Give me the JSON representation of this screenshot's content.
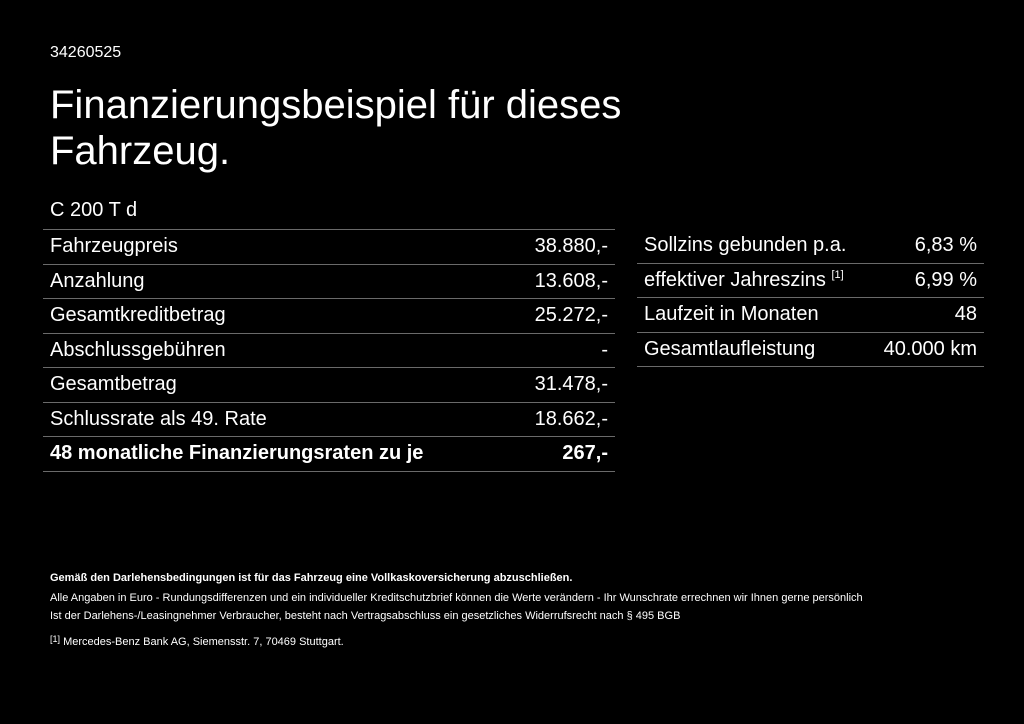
{
  "ref": "34260525",
  "title": "Finanzierungsbeispiel für dieses Fahrzeug.",
  "model": "C 200 T d",
  "left_table": [
    {
      "label": "Fahrzeugpreis",
      "value": "38.880,-"
    },
    {
      "label": "Anzahlung",
      "value": "13.608,-"
    },
    {
      "label": "Gesamtkreditbetrag",
      "value": "25.272,-"
    },
    {
      "label": "Abschlussgebühren",
      "value": "-"
    },
    {
      "label": "Gesamtbetrag",
      "value": "31.478,-"
    },
    {
      "label": "Schlussrate als 49. Rate",
      "value": "18.662,-"
    },
    {
      "label": "48 monatliche Finanzierungsraten zu je",
      "value": "267,-"
    }
  ],
  "right_table": [
    {
      "label": "Sollzins gebunden p.a.",
      "value": "6,83 %"
    },
    {
      "label": "effektiver Jahreszins",
      "sup": "[1]",
      "value": "6,99 %"
    },
    {
      "label": "Laufzeit in Monaten",
      "value": "48"
    },
    {
      "label": "Gesamtlaufleistung",
      "value": "40.000 km"
    }
  ],
  "footnotes": {
    "bold": "Gemäß den Darlehensbedingungen ist für das Fahrzeug eine Vollkaskoversicherung abzuschließen.",
    "line1": "Alle Angaben in Euro - Rundungsdifferenzen und ein individueller Kreditschutzbrief können die Werte verändern - Ihr Wunschrate errechnen wir Ihnen gerne persönlich",
    "line2": "Ist der Darlehens-/Leasingnehmer Verbraucher, besteht nach Vertragsabschluss ein gesetzliches Widerrufsrecht nach § 495 BGB",
    "ref_mark": "[1]",
    "ref_text": "Mercedes-Benz Bank AG, Siemensstr. 7, 70469 Stuttgart."
  }
}
